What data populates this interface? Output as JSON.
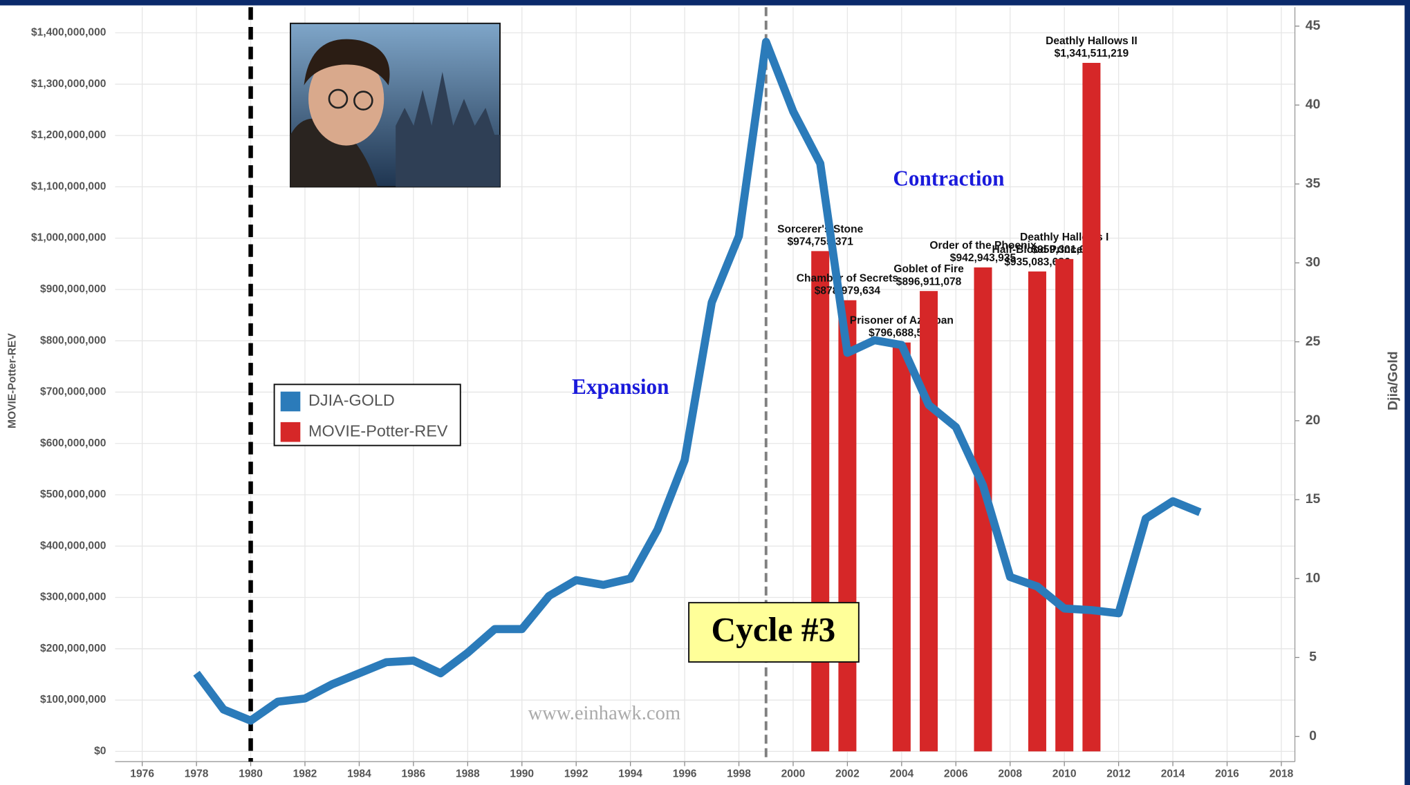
{
  "chart_data": {
    "type": "combo",
    "xlim": [
      1975,
      2018.5
    ],
    "xticks": [
      1976,
      1978,
      1980,
      1982,
      1984,
      1986,
      1988,
      1990,
      1992,
      1994,
      1996,
      1998,
      2000,
      2002,
      2004,
      2006,
      2008,
      2010,
      2012,
      2014,
      2016,
      2018
    ],
    "ylim": [
      -20000000,
      1450000000
    ],
    "yticks": [
      {
        "value": 0,
        "label": "$0"
      },
      {
        "value": 100000000,
        "label": "$100,000,000"
      },
      {
        "value": 200000000,
        "label": "$200,000,000"
      },
      {
        "value": 300000000,
        "label": "$300,000,000"
      },
      {
        "value": 400000000,
        "label": "$400,000,000"
      },
      {
        "value": 500000000,
        "label": "$500,000,000"
      },
      {
        "value": 600000000,
        "label": "$600,000,000"
      },
      {
        "value": 700000000,
        "label": "$700,000,000"
      },
      {
        "value": 800000000,
        "label": "$800,000,000"
      },
      {
        "value": 900000000,
        "label": "$900,000,000"
      },
      {
        "value": 1000000000,
        "label": "$1,000,000,000"
      },
      {
        "value": 1100000000,
        "label": "$1,100,000,000"
      },
      {
        "value": 1200000000,
        "label": "$1,200,000,000"
      },
      {
        "value": 1300000000,
        "label": "$1,300,000,000"
      },
      {
        "value": 1400000000,
        "label": "$1,400,000,000"
      }
    ],
    "y2lim": [
      -1.6,
      46.2
    ],
    "y2ticks": [
      0,
      5,
      10,
      15,
      20,
      25,
      30,
      35,
      40,
      45
    ],
    "ylabel": "MOVIE-Potter-REV",
    "y2label": "Djia/Gold",
    "grid": true,
    "series": [
      {
        "name": "DJIA-GOLD",
        "type": "line",
        "axis": "y2",
        "color": "#2b7bba",
        "x": [
          1978,
          1979,
          1980,
          1981,
          1982,
          1983,
          1984,
          1985,
          1986,
          1987,
          1988,
          1989,
          1990,
          1991,
          1992,
          1993,
          1994,
          1995,
          1996,
          1997,
          1998,
          1999,
          2000,
          2001,
          2002,
          2003,
          2004,
          2005,
          2006,
          2007,
          2008,
          2009,
          2010,
          2011,
          2012,
          2013,
          2014,
          2015
        ],
        "values": [
          4.0,
          1.7,
          1.0,
          2.2,
          2.4,
          3.3,
          4.0,
          4.7,
          4.8,
          4.0,
          5.3,
          6.8,
          6.8,
          8.9,
          9.9,
          9.6,
          10.0,
          13.1,
          17.5,
          27.5,
          31.7,
          44.0,
          39.6,
          36.3,
          24.3,
          25.1,
          24.8,
          21.0,
          19.6,
          15.9,
          10.1,
          9.5,
          8.1,
          8.0,
          7.8,
          13.8,
          14.9,
          14.2
        ]
      },
      {
        "name": "MOVIE-Potter-REV",
        "type": "bar",
        "color": "#d62728",
        "x": [
          2001,
          2002,
          2004,
          2005,
          2007,
          2009,
          2010,
          2011
        ],
        "values": [
          974755371,
          878979634,
          796688549,
          896911078,
          942943935,
          935083686,
          959301070,
          1341511219
        ],
        "value_labels": [
          "$974,755,371",
          "$878,979,634",
          "$796,688,549",
          "$896,911,078",
          "$942,943,935",
          "$935,083,686",
          "$959,301,070",
          "$1,341,511,219"
        ],
        "labels": [
          "Sorcerer's Stone",
          "Chamber of Secrets",
          "Prisoner of Azkaban",
          "Goblet of Fire",
          "Order of the Phoenix",
          "Half-Blood Prince",
          "Deathly Hallows I",
          "Deathly Hallows II"
        ]
      }
    ],
    "reference_lines": [
      {
        "x": 1980,
        "color": "#000000"
      },
      {
        "x": 1999,
        "color": "#808080"
      }
    ],
    "annotations": [
      "Expansion",
      "Contraction",
      "Cycle #3",
      "www.einhawk.com"
    ]
  }
}
